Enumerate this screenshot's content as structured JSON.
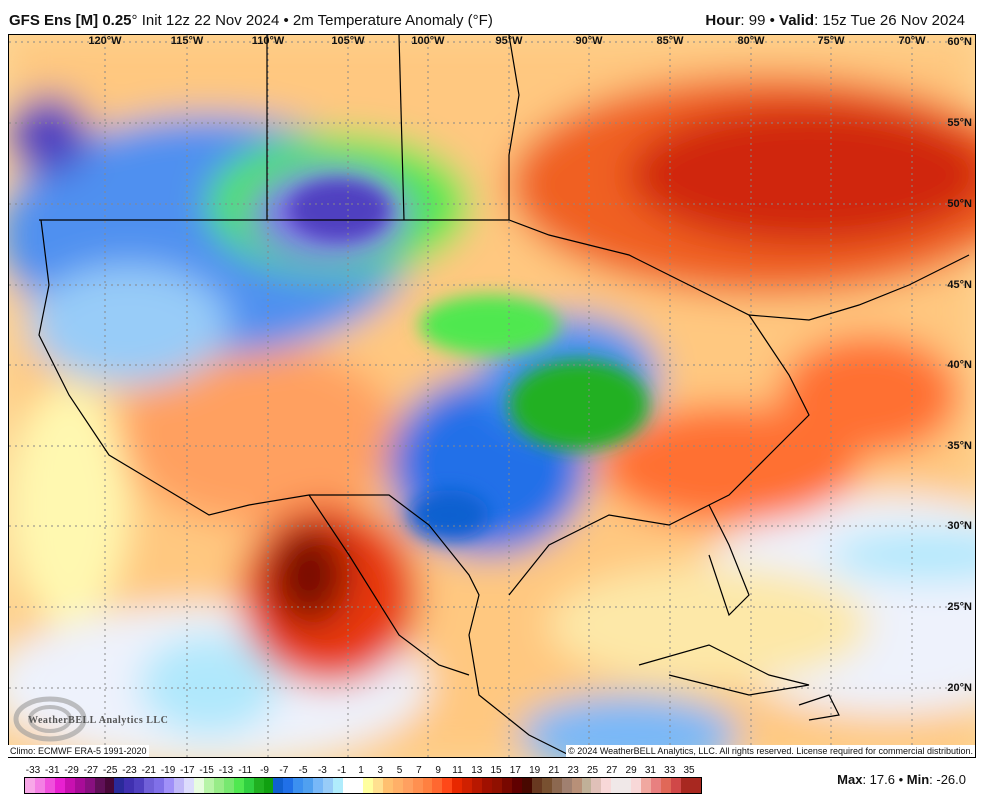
{
  "header": {
    "model": "GFS Ens [M] 0.25",
    "deg": "°",
    "init": " Init 12z 22 Nov 2024 • 2m Temperature Anomaly (°F)",
    "hour_label": "Hour",
    "hour_value": ": 99 • ",
    "valid_label": "Valid",
    "valid_value": ": 15z Tue 26 Nov 2024"
  },
  "map": {
    "lon_labels": [
      "120°W",
      "115°W",
      "110°W",
      "105°W",
      "100°W",
      "95°W",
      "90°W",
      "85°W",
      "80°W",
      "75°W",
      "70°W"
    ],
    "lat_labels": [
      "60°N",
      "55°N",
      "50°N",
      "45°N",
      "40°N",
      "35°N",
      "30°N",
      "25°N",
      "20°N"
    ],
    "climo": "Climo: ECMWF ERA-5 1991-2020",
    "copyright": "© 2024 WeatherBELL Analytics, LLC. All rights reserved. License required for commercial distribution.",
    "logo_text": "WeatherBELL Analytics LLC"
  },
  "colorbar": {
    "labels": [
      "-33",
      "-31",
      "-29",
      "-27",
      "-25",
      "-23",
      "-21",
      "-19",
      "-17",
      "-15",
      "-13",
      "-11",
      "-9",
      "-7",
      "-5",
      "-3",
      "-1",
      "1",
      "3",
      "5",
      "7",
      "9",
      "11",
      "13",
      "15",
      "17",
      "19",
      "21",
      "23",
      "25",
      "27",
      "29",
      "31",
      "33",
      "35"
    ],
    "colors": [
      "#f8a8e8",
      "#f480e4",
      "#f050dc",
      "#e820d0",
      "#c810b0",
      "#a80c98",
      "#881080",
      "#601058",
      "#480838",
      "#2a2a9a",
      "#4030b0",
      "#5040c0",
      "#7060d8",
      "#8070e8",
      "#a090f8",
      "#c0b8f8",
      "#dcdcfc",
      "#e8fce0",
      "#b8f4a8",
      "#98ec88",
      "#78e870",
      "#50e850",
      "#30d040",
      "#20b020",
      "#10a010",
      "#1060d0",
      "#2070e8",
      "#3c90f0",
      "#50a0f0",
      "#78b8f8",
      "#98ccf8",
      "#b0ecfc",
      "#ffffff",
      "#ffffff",
      "#ffffa0",
      "#ffe090",
      "#ffc070",
      "#ffb068",
      "#ffa060",
      "#ff9050",
      "#ff8040",
      "#ff6830",
      "#ff4818",
      "#e82800",
      "#d02000",
      "#b81800",
      "#a01000",
      "#901000",
      "#780800",
      "#600000",
      "#480800",
      "#683820",
      "#785030",
      "#8c6850",
      "#a08070",
      "#b89078",
      "#c0b098",
      "#e0c0b8",
      "#f8d8d8",
      "#f0e8e8",
      "#f0e8e8",
      "#f8d8d8",
      "#f0a8a0",
      "#e88080",
      "#e06858",
      "#d04848",
      "#a82820",
      "#a82820"
    ]
  },
  "stats": {
    "max_label": "Max",
    "max_value": ": 17.6 • ",
    "min_label": "Min",
    "min_value": ": -26.0"
  }
}
